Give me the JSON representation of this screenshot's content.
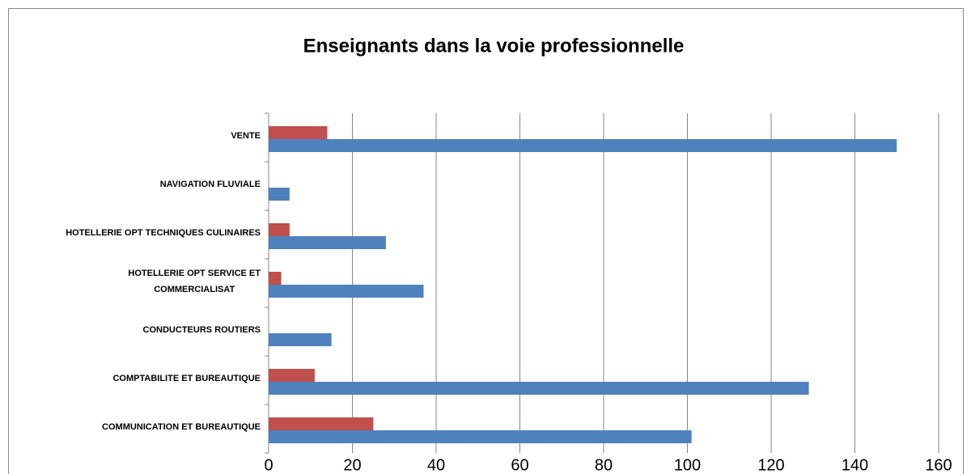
{
  "chart_data": {
    "type": "bar",
    "orientation": "horizontal",
    "title": "Enseignants dans la voie professionnelle",
    "categories": [
      "COMMUNICATION ET BUREAUTIQUE",
      "COMPTABILITE ET BUREAUTIQUE",
      "CONDUCTEURS ROUTIERS",
      "HOTELLERIE OPT SERVICE ET\nCOMMERCIALISAT",
      "HOTELLERIE OPT TECHNIQUES CULINAIRES",
      "NAVIGATION FLUVIALE",
      "VENTE"
    ],
    "series": [
      {
        "color": "#4f81bd",
        "values": [
          101,
          129,
          15,
          37,
          28,
          5,
          150
        ]
      },
      {
        "color": "#c0504d",
        "values": [
          25,
          11,
          null,
          3,
          5,
          null,
          14
        ]
      }
    ],
    "xlim": [
      0,
      160
    ],
    "xticks": [
      0,
      20,
      40,
      60,
      80,
      100,
      120,
      140,
      160
    ],
    "grid": true
  }
}
